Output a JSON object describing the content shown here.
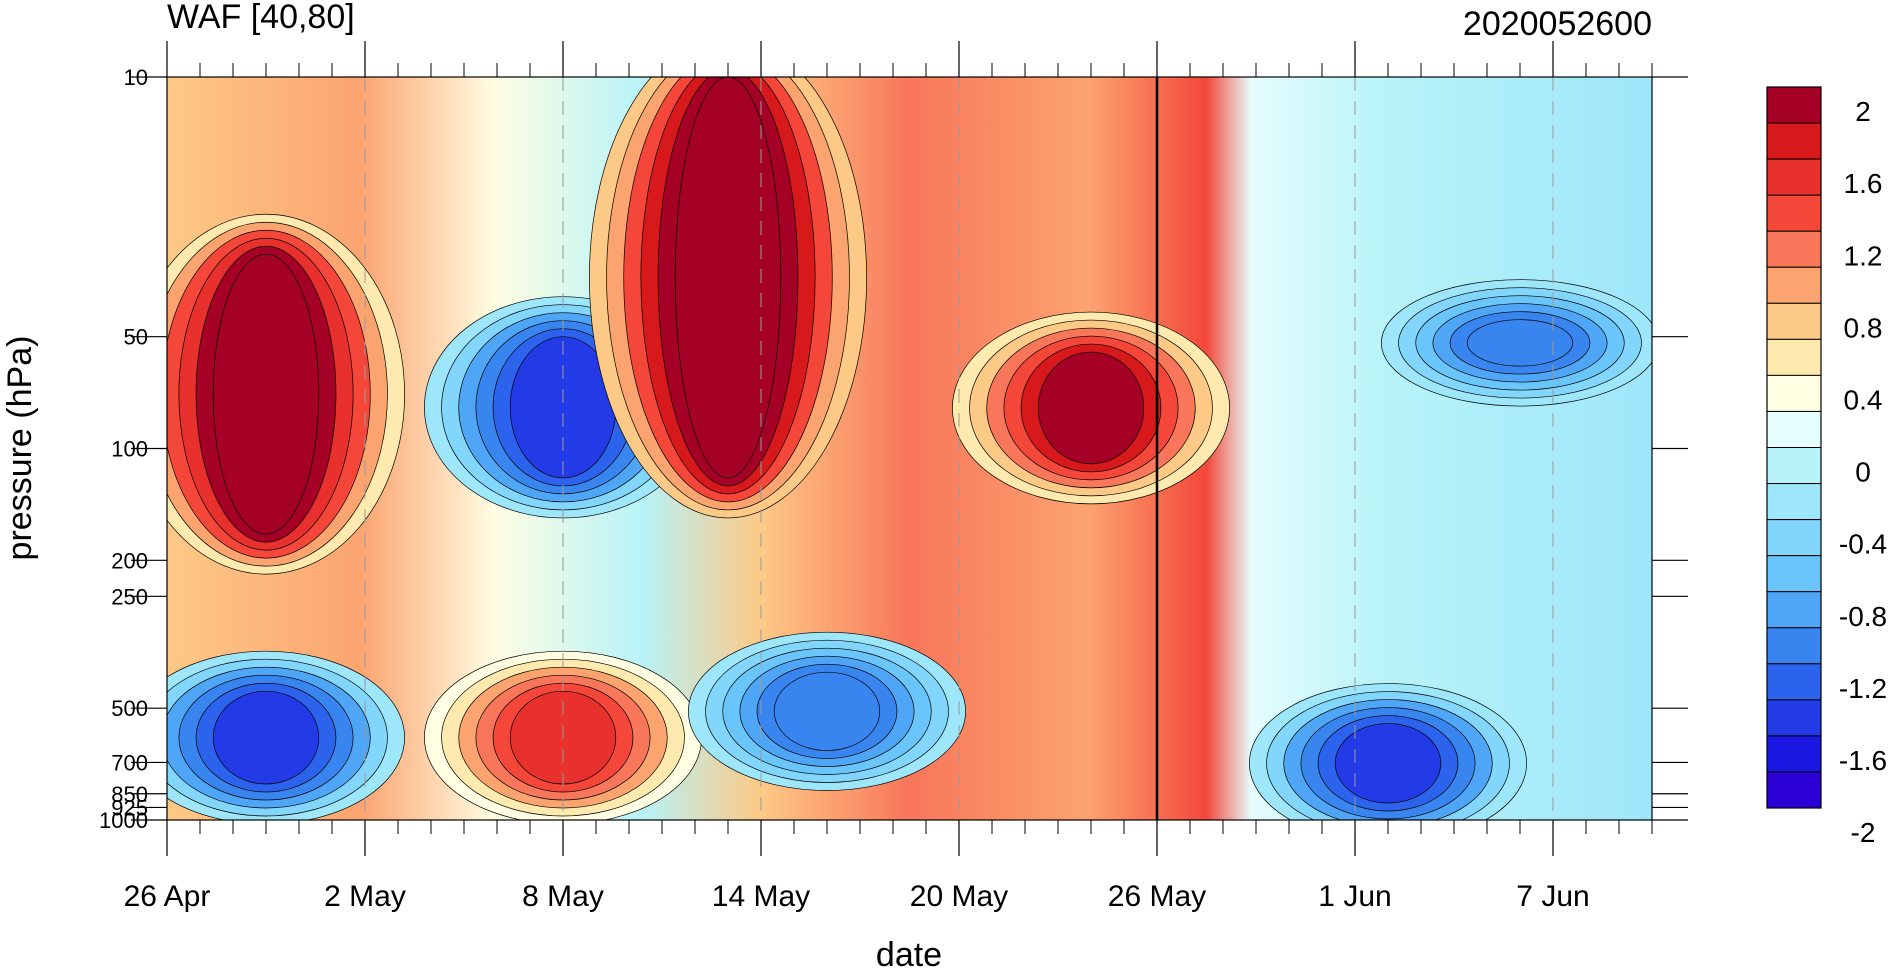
{
  "chart_data": {
    "type": "heatmap",
    "title": "WAF [40,80]",
    "subtitle": "2020052600",
    "xlabel": "date",
    "ylabel": "pressure (hPa)",
    "x_ticks": [
      "26 Apr",
      "2 May",
      "8 May",
      "14 May",
      "20 May",
      "26 May",
      "1 Jun",
      "7 Jun"
    ],
    "y_ticks": [
      "10",
      "50",
      "100",
      "200",
      "250",
      "500",
      "700",
      "850",
      "925",
      "1000"
    ],
    "y_scale": "log",
    "ylim": [
      1000,
      10
    ],
    "xlim": [
      "2020-04-26",
      "2020-06-10"
    ],
    "current_date_marker": "2020-05-26",
    "colorbar": {
      "labels": [
        "2",
        "1.6",
        "1.2",
        "0.8",
        "0.4",
        "0",
        "-0.4",
        "-0.8",
        "-1.2",
        "-1.6",
        "-2"
      ],
      "levels": [
        -2,
        -1.8,
        -1.6,
        -1.4,
        -1.2,
        -1,
        -0.8,
        -0.6,
        -0.4,
        -0.2,
        0,
        0.2,
        0.4,
        0.6,
        0.8,
        1,
        1.2,
        1.4,
        1.6,
        1.8,
        2
      ],
      "colors": [
        "#a50026",
        "#d7191c",
        "#e8302c",
        "#f4473a",
        "#f8765a",
        "#fba470",
        "#fdc986",
        "#feeaae",
        "#fffde2",
        "#e6fdfd",
        "#b7f3f8",
        "#9ee6fa",
        "#82d6fb",
        "#69c5fa",
        "#4fa6f6",
        "#3985f0",
        "#2b63ec",
        "#233be7",
        "#1a17e3",
        "#2a00d5"
      ]
    },
    "features": [
      {
        "date": "2020-04-29",
        "p_top": 30,
        "p_bottom": 170,
        "value": 2.2
      },
      {
        "date": "2020-05-08",
        "p_top": 50,
        "p_bottom": 120,
        "value": -1.5
      },
      {
        "date": "2020-05-13",
        "p_top": 10,
        "p_bottom": 120,
        "value": 2.4
      },
      {
        "date": "2020-05-24",
        "p_top": 55,
        "p_bottom": 110,
        "value": 1.9
      },
      {
        "date": "2020-05-08",
        "p_top": 450,
        "p_bottom": 800,
        "value": 1.5
      },
      {
        "date": "2020-04-29",
        "p_top": 450,
        "p_bottom": 800,
        "value": -1.5
      },
      {
        "date": "2020-05-16",
        "p_top": 400,
        "p_bottom": 650,
        "value": -1.2
      },
      {
        "date": "2020-06-06",
        "p_top": 45,
        "p_bottom": 60,
        "value": -1.2
      },
      {
        "date": "2020-06-02",
        "p_top": 550,
        "p_bottom": 900,
        "value": -1.5
      }
    ]
  }
}
